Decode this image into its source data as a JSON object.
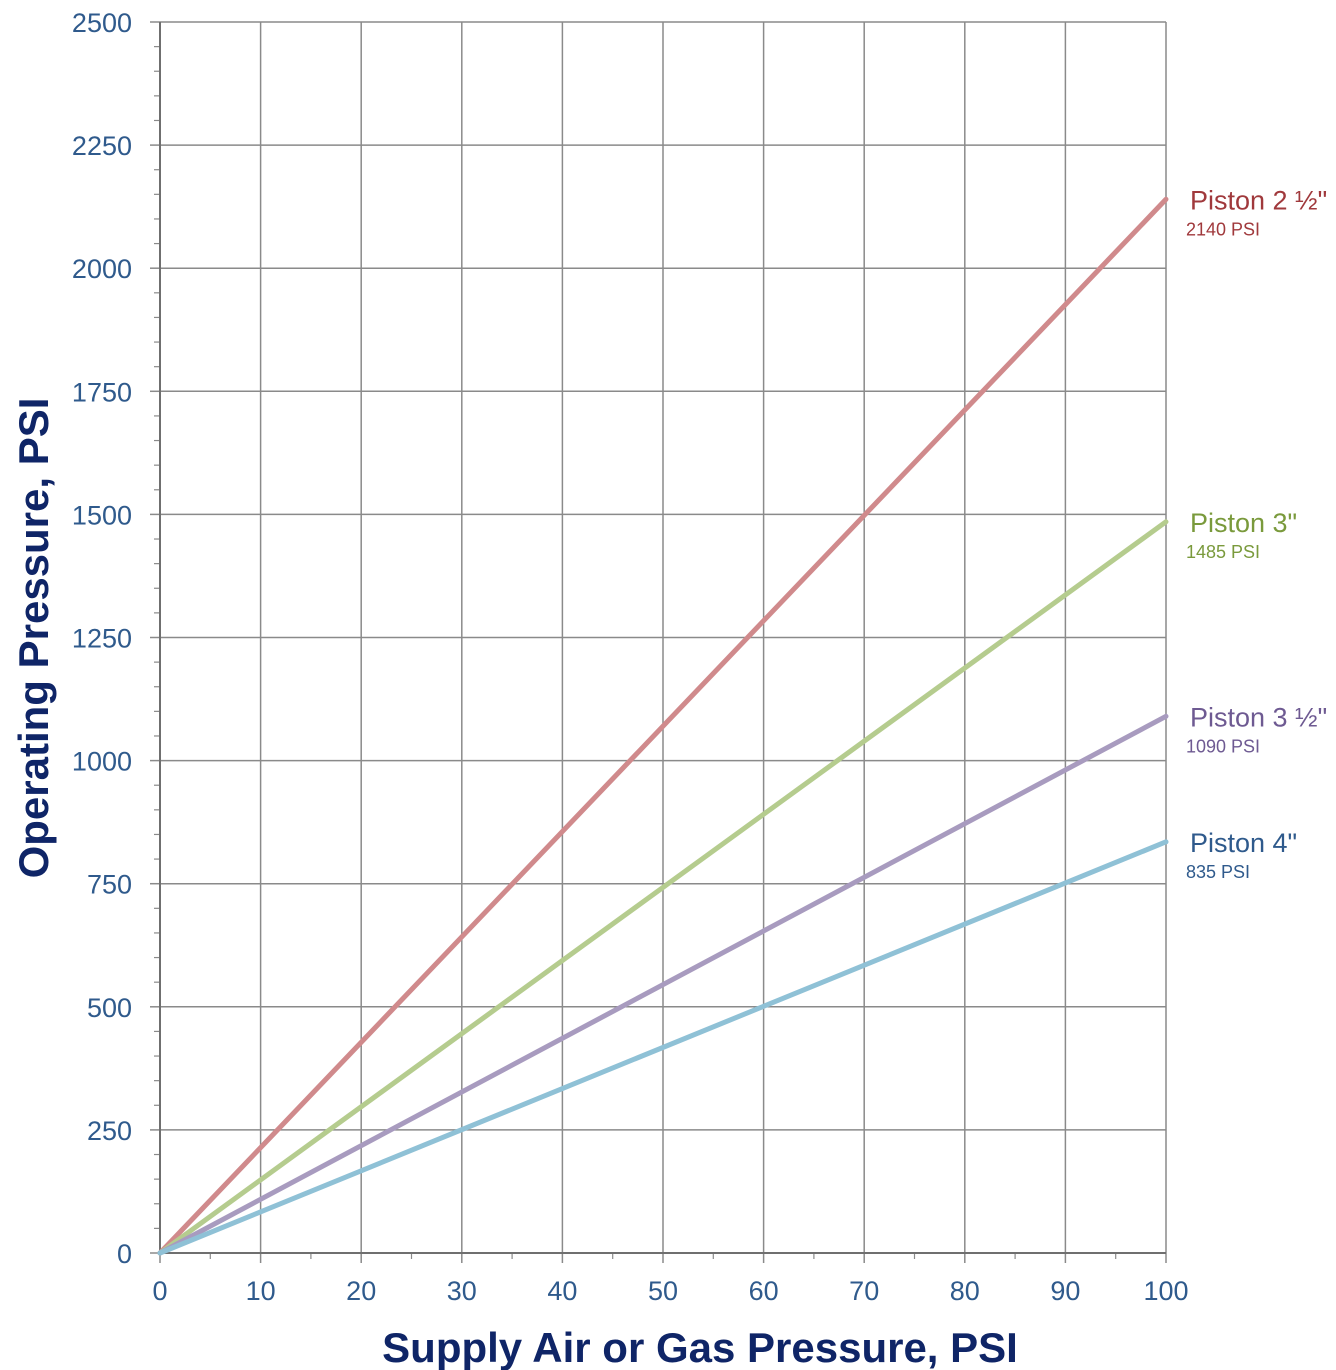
{
  "chart_data": {
    "type": "line",
    "xlabel": "Supply Air or Gas Pressure, PSI",
    "ylabel": "Operating Pressure, PSI",
    "xlim": [
      0,
      100
    ],
    "ylim": [
      0,
      2500
    ],
    "x_ticks": [
      0,
      10,
      20,
      30,
      40,
      50,
      60,
      70,
      80,
      90,
      100
    ],
    "y_ticks": [
      0,
      250,
      500,
      750,
      1000,
      1250,
      1500,
      1750,
      2000,
      2250,
      2500
    ],
    "grid": true,
    "series": [
      {
        "name": "Piston 2 ½\"",
        "end_label": "2140 PSI",
        "x": [
          0,
          100
        ],
        "values": [
          0,
          2140
        ],
        "color": "#d08a8c",
        "label_color": "#a0393c"
      },
      {
        "name": "Piston 3\"",
        "end_label": "1485 PSI",
        "x": [
          0,
          100
        ],
        "values": [
          0,
          1485
        ],
        "color": "#b5cc8e",
        "label_color": "#7a9a3c"
      },
      {
        "name": "Piston 3 ½\"",
        "end_label": "1090 PSI",
        "x": [
          0,
          100
        ],
        "values": [
          0,
          1090
        ],
        "color": "#a89bbf",
        "label_color": "#6e5a92"
      },
      {
        "name": "Piston 4\"",
        "end_label": "835 PSI",
        "x": [
          0,
          100
        ],
        "values": [
          0,
          835
        ],
        "color": "#8fc1d6",
        "label_color": "#2f5a8c"
      }
    ],
    "colors": {
      "axis_text": "#2f5a8c",
      "axis_title": "#0f2567",
      "grid": "#8a8a8a"
    }
  }
}
